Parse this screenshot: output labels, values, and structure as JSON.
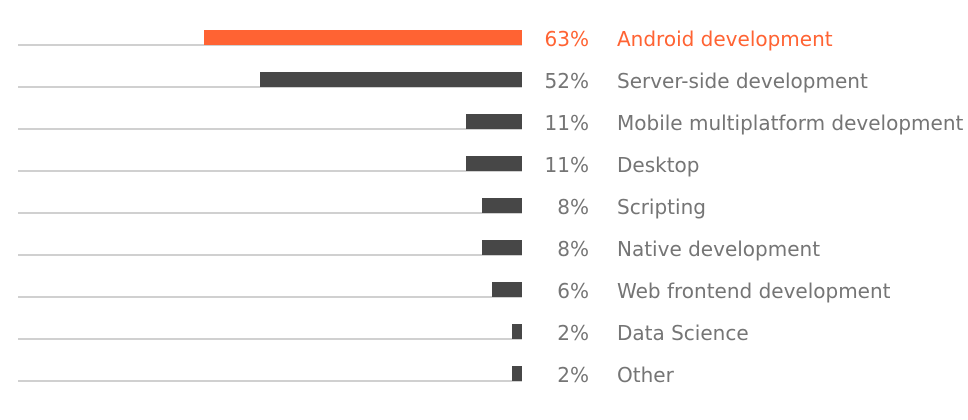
{
  "chart_data": {
    "type": "bar",
    "orientation": "horizontal",
    "unit": "%",
    "xlim": [
      0,
      63
    ],
    "grid": false,
    "legend": "none",
    "colors": {
      "default": "#474747",
      "highlight": "#ff6333",
      "text": "#757575",
      "track": "#d0d0d0"
    },
    "highlight_index": 0,
    "categories": [
      "Android development",
      "Server-side development",
      "Mobile multiplatform development",
      "Desktop",
      "Scripting",
      "Native development",
      "Web frontend development",
      "Data Science",
      "Other"
    ],
    "values": [
      63,
      52,
      11,
      11,
      8,
      8,
      6,
      2,
      2
    ],
    "value_labels": [
      "63%",
      "52%",
      "11%",
      "11%",
      "8%",
      "8%",
      "6%",
      "2%",
      "2%"
    ]
  }
}
